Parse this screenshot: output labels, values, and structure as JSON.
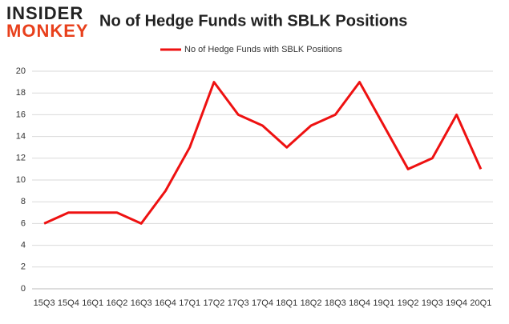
{
  "logo": {
    "line1": "INSIDER",
    "line2": "MONKEY"
  },
  "chart_data": {
    "type": "line",
    "title": "No of Hedge Funds with SBLK Positions",
    "categories": [
      "15Q3",
      "15Q4",
      "16Q1",
      "16Q2",
      "16Q3",
      "16Q4",
      "17Q1",
      "17Q2",
      "17Q3",
      "17Q4",
      "18Q1",
      "18Q2",
      "18Q3",
      "18Q4",
      "19Q1",
      "19Q2",
      "19Q3",
      "19Q4",
      "20Q1"
    ],
    "series": [
      {
        "name": "No of Hedge Funds with SBLK Positions",
        "color": "#ee1111",
        "values": [
          6,
          7,
          7,
          7,
          6,
          9,
          13,
          19,
          16,
          15,
          13,
          15,
          16,
          19,
          15,
          11,
          12,
          16,
          11
        ]
      }
    ],
    "ylim": [
      0,
      20
    ],
    "yticks": [
      0,
      2,
      4,
      6,
      8,
      10,
      12,
      14,
      16,
      18,
      20
    ],
    "grid": true,
    "legend": "top"
  }
}
